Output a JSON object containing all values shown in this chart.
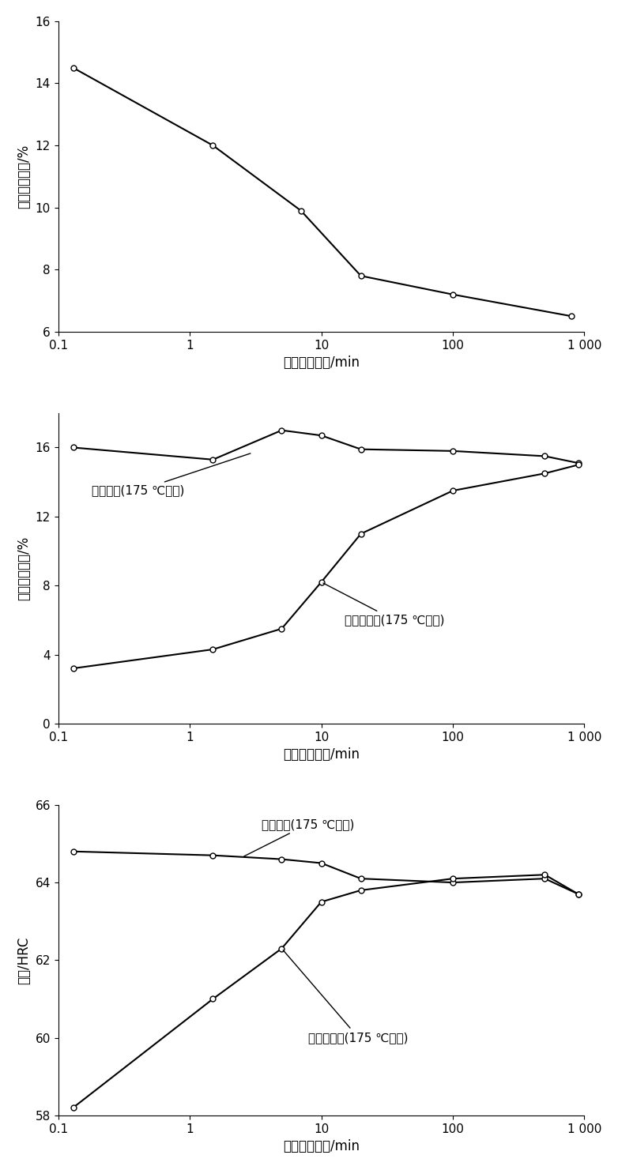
{
  "chart1": {
    "ylabel": "未溶碳化物量/%",
    "xlabel": "奥氏体化时间/min",
    "xlim": [
      0.1,
      1000
    ],
    "ylim": [
      6,
      16
    ],
    "yticks": [
      6,
      8,
      10,
      12,
      14,
      16
    ],
    "x": [
      0.13,
      1.5,
      7,
      20,
      100,
      800
    ],
    "y": [
      14.5,
      12.0,
      9.9,
      7.8,
      7.2,
      6.5
    ]
  },
  "chart2": {
    "ylabel": "残余奥氏体量/%",
    "xlabel": "奥氏体化时间/min",
    "xlim": [
      0.1,
      1000
    ],
    "ylim": [
      0,
      18
    ],
    "yticks": [
      0,
      4,
      8,
      12,
      16
    ],
    "fine_x": [
      0.13,
      1.5,
      5,
      10,
      20,
      100,
      500,
      900
    ],
    "fine_y": [
      16.0,
      15.3,
      17.0,
      16.7,
      15.9,
      15.8,
      15.5,
      15.1
    ],
    "granular_x": [
      0.13,
      1.5,
      5,
      10,
      20,
      100,
      500,
      900
    ],
    "granular_y": [
      3.2,
      4.3,
      5.5,
      8.2,
      11.0,
      13.5,
      14.5,
      15.0
    ],
    "label_fine": "细珠光体(175 ℃回火)",
    "label_granular": "粒状珠光体(175 ℃回火)"
  },
  "chart3": {
    "ylabel": "硬度/HRC",
    "xlabel": "奥氏体化时间/min",
    "xlim": [
      0.1,
      1000
    ],
    "ylim": [
      58,
      66
    ],
    "yticks": [
      58,
      60,
      62,
      64,
      66
    ],
    "fine_x": [
      0.13,
      1.5,
      5,
      10,
      20,
      100,
      500,
      900
    ],
    "fine_y": [
      64.8,
      64.7,
      64.6,
      64.5,
      64.1,
      64.0,
      64.1,
      63.7
    ],
    "granular_x": [
      0.13,
      1.5,
      5,
      10,
      20,
      100,
      500,
      900
    ],
    "granular_y": [
      58.2,
      61.0,
      62.3,
      63.5,
      63.8,
      64.1,
      64.2,
      63.7
    ],
    "label_fine": "细珠光体(175 ℃回火)",
    "label_granular": "粒状珠光体(175 ℃回火)"
  },
  "line_color": "#000000",
  "marker": "o",
  "markersize": 5,
  "markerfacecolor": "white",
  "linewidth": 1.5,
  "label_fontsize": 12,
  "tick_fontsize": 11,
  "annot_fontsize": 11
}
